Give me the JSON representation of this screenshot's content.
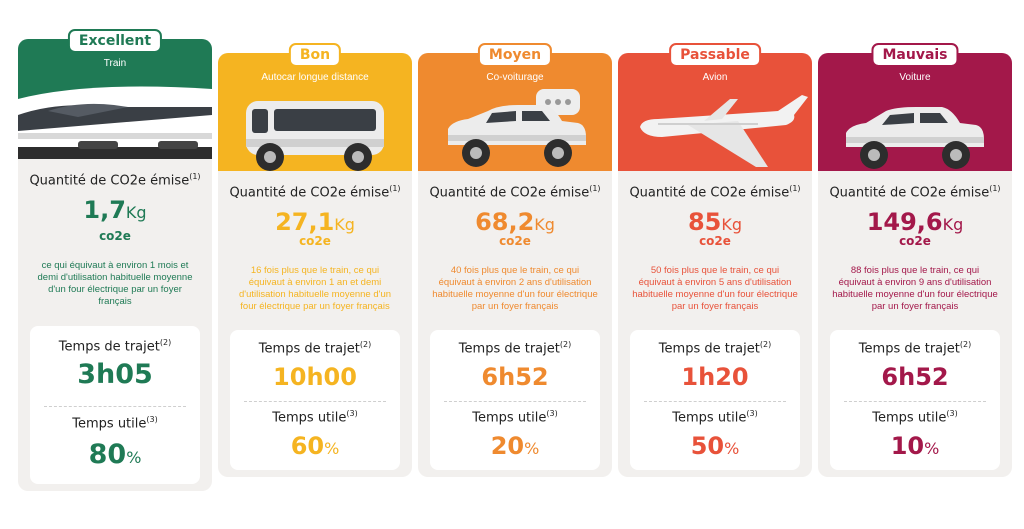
{
  "cards": [
    {
      "rating": "Excellent",
      "mode": "Train",
      "co2_label": "Quantité de CO2e émise",
      "co2_note": "(1)",
      "co2_value": "1,7",
      "co2_unit": "Kg",
      "co2_sub": "co2e",
      "description": "ce qui équivaut à environ 1 mois et demi d'utilisation habituelle moyenne d'un four électrique par un foyer français",
      "travel_time_label": "Temps de trajet",
      "travel_time_note": "(2)",
      "travel_time": "3h05",
      "useful_time_label": "Temps utile",
      "useful_time_note": "(3)",
      "useful_time": "80",
      "useful_time_unit": "%",
      "color": "#1f7a55",
      "icon": "train-icon"
    },
    {
      "rating": "Bon",
      "mode": "Autocar longue distance",
      "co2_label": "Quantité de CO2e émise",
      "co2_note": "(1)",
      "co2_value": "27,1",
      "co2_unit": "Kg",
      "co2_sub": "co2e",
      "description": "16 fois plus que le train, ce qui équivaut à environ 1 an et demi d'utilisation habituelle moyenne d'un four électrique par un foyer français",
      "travel_time_label": "Temps de trajet",
      "travel_time_note": "(2)",
      "travel_time": "10h00",
      "useful_time_label": "Temps utile",
      "useful_time_note": "(3)",
      "useful_time": "60",
      "useful_time_unit": "%",
      "color": "#f5b421",
      "icon": "bus-icon"
    },
    {
      "rating": "Moyen",
      "mode": "Co-voiturage",
      "co2_label": "Quantité de CO2e émise",
      "co2_note": "(1)",
      "co2_value": "68,2",
      "co2_unit": "Kg",
      "co2_sub": "co2e",
      "description": "40 fois plus que le train, ce qui équivaut à environ 2 ans d'utilisation habituelle moyenne d'un four électrique par un foyer français",
      "travel_time_label": "Temps de trajet",
      "travel_time_note": "(2)",
      "travel_time": "6h52",
      "useful_time_label": "Temps utile",
      "useful_time_note": "(3)",
      "useful_time": "20",
      "useful_time_unit": "%",
      "color": "#ef8a2f",
      "icon": "carpool-car-icon"
    },
    {
      "rating": "Passable",
      "mode": "Avion",
      "co2_label": "Quantité de CO2e émise",
      "co2_note": "(1)",
      "co2_value": "85",
      "co2_unit": "Kg",
      "co2_sub": "co2e",
      "description": "50 fois plus que le train, ce qui équivaut à environ 5 ans d'utilisation habituelle moyenne d'un four électrique par un foyer français",
      "travel_time_label": "Temps de trajet",
      "travel_time_note": "(2)",
      "travel_time": "1h20",
      "useful_time_label": "Temps utile",
      "useful_time_note": "(3)",
      "useful_time": "50",
      "useful_time_unit": "%",
      "color": "#e8523a",
      "icon": "airplane-icon"
    },
    {
      "rating": "Mauvais",
      "mode": "Voiture",
      "co2_label": "Quantité de CO2e émise",
      "co2_note": "(1)",
      "co2_value": "149,6",
      "co2_unit": "Kg",
      "co2_sub": "co2e",
      "description": "88 fois plus que le train, ce qui équivaut à environ 9 ans d'utilisation habituelle moyenne d'un four électrique par un foyer français",
      "travel_time_label": "Temps de trajet",
      "travel_time_note": "(2)",
      "travel_time": "6h52",
      "useful_time_label": "Temps utile",
      "useful_time_note": "(3)",
      "useful_time": "10",
      "useful_time_unit": "%",
      "color": "#a3184a",
      "icon": "car-icon"
    }
  ]
}
